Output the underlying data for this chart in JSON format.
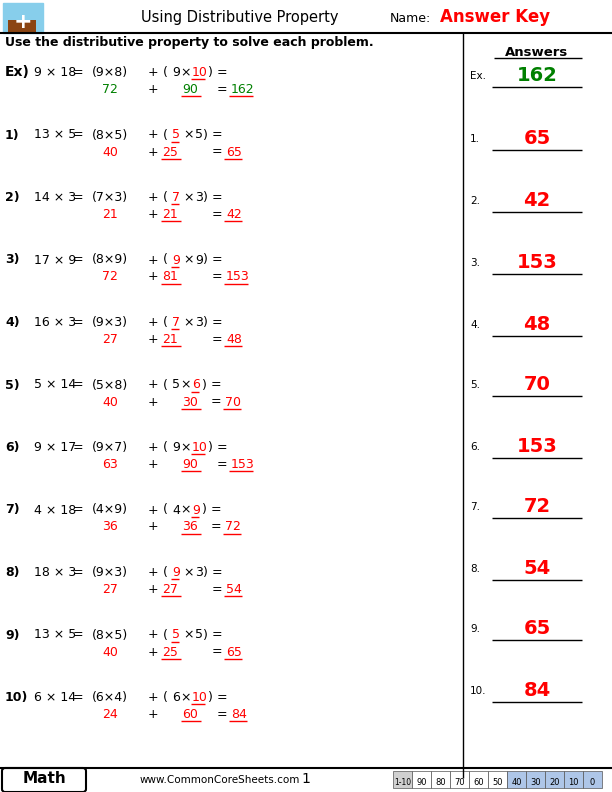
{
  "title": "Using Distributive Property",
  "name_label": "Name:",
  "answer_key_label": "Answer Key",
  "instruction": "Use the distributive property to solve each problem.",
  "answers_header": "Answers",
  "bg_color": "#ffffff",
  "rows": [
    {
      "label": "Ex)",
      "problem": "9 × 18",
      "eq_part1": "(9×8)",
      "under_val": "10",
      "left_mult": "9",
      "right_mult": "",
      "sub1": "72",
      "sub2": "90",
      "answer": "162",
      "ans_color": "green",
      "sub1_color": "green",
      "sub2_color": "green"
    },
    {
      "label": "1)",
      "problem": "13 × 5",
      "eq_part1": "(8×5)",
      "under_val": "5",
      "left_mult": "",
      "right_mult": "5",
      "sub1": "40",
      "sub2": "25",
      "answer": "65",
      "ans_color": "red",
      "sub1_color": "red",
      "sub2_color": "red"
    },
    {
      "label": "2)",
      "problem": "14 × 3",
      "eq_part1": "(7×3)",
      "under_val": "7",
      "left_mult": "",
      "right_mult": "3",
      "sub1": "21",
      "sub2": "21",
      "answer": "42",
      "ans_color": "red",
      "sub1_color": "red",
      "sub2_color": "red"
    },
    {
      "label": "3)",
      "problem": "17 × 9",
      "eq_part1": "(8×9)",
      "under_val": "9",
      "left_mult": "",
      "right_mult": "9",
      "sub1": "72",
      "sub2": "81",
      "answer": "153",
      "ans_color": "red",
      "sub1_color": "red",
      "sub2_color": "red"
    },
    {
      "label": "4)",
      "problem": "16 × 3",
      "eq_part1": "(9×3)",
      "under_val": "7",
      "left_mult": "",
      "right_mult": "3",
      "sub1": "27",
      "sub2": "21",
      "answer": "48",
      "ans_color": "red",
      "sub1_color": "red",
      "sub2_color": "red"
    },
    {
      "label": "5)",
      "problem": "5 × 14",
      "eq_part1": "(5×8)",
      "under_val": "6",
      "left_mult": "5",
      "right_mult": "",
      "sub1": "40",
      "sub2": "30",
      "answer": "70",
      "ans_color": "red",
      "sub1_color": "red",
      "sub2_color": "red"
    },
    {
      "label": "6)",
      "problem": "9 × 17",
      "eq_part1": "(9×7)",
      "under_val": "10",
      "left_mult": "9",
      "right_mult": "",
      "sub1": "63",
      "sub2": "90",
      "answer": "153",
      "ans_color": "red",
      "sub1_color": "red",
      "sub2_color": "red"
    },
    {
      "label": "7)",
      "problem": "4 × 18",
      "eq_part1": "(4×9)",
      "under_val": "9",
      "left_mult": "4",
      "right_mult": "",
      "sub1": "36",
      "sub2": "36",
      "answer": "72",
      "ans_color": "red",
      "sub1_color": "red",
      "sub2_color": "red"
    },
    {
      "label": "8)",
      "problem": "18 × 3",
      "eq_part1": "(9×3)",
      "under_val": "9",
      "left_mult": "",
      "right_mult": "3",
      "sub1": "27",
      "sub2": "27",
      "answer": "54",
      "ans_color": "red",
      "sub1_color": "red",
      "sub2_color": "red"
    },
    {
      "label": "9)",
      "problem": "13 × 5",
      "eq_part1": "(8×5)",
      "under_val": "5",
      "left_mult": "",
      "right_mult": "5",
      "sub1": "40",
      "sub2": "25",
      "answer": "65",
      "ans_color": "red",
      "sub1_color": "red",
      "sub2_color": "red"
    },
    {
      "label": "10)",
      "problem": "6 × 14",
      "eq_part1": "(6×4)",
      "under_val": "10",
      "left_mult": "6",
      "right_mult": "",
      "sub1": "24",
      "sub2": "60",
      "answer": "84",
      "ans_color": "red",
      "sub1_color": "red",
      "sub2_color": "red"
    }
  ],
  "right_answers": [
    "162",
    "65",
    "42",
    "153",
    "48",
    "70",
    "153",
    "72",
    "54",
    "65",
    "84"
  ],
  "right_labels": [
    "Ex.",
    "1.",
    "2.",
    "3.",
    "4.",
    "5.",
    "6.",
    "7.",
    "8.",
    "9.",
    "10."
  ],
  "right_colors": [
    "green",
    "red",
    "red",
    "red",
    "red",
    "red",
    "red",
    "red",
    "red",
    "red",
    "red"
  ],
  "score_labels": [
    "1-10",
    "90",
    "80",
    "70",
    "60",
    "50",
    "40",
    "30",
    "20",
    "10",
    "0"
  ],
  "score_bg": [
    "#d0d0d0",
    "#ffffff",
    "#ffffff",
    "#ffffff",
    "#ffffff",
    "#ffffff",
    "#aec6e8",
    "#aec6e8",
    "#aec6e8",
    "#aec6e8",
    "#aec6e8"
  ],
  "score_fg": [
    "#000000",
    "#000000",
    "#000000",
    "#000000",
    "#000000",
    "#000000",
    "#000000",
    "#000000",
    "#000000",
    "#000000",
    "#000000"
  ],
  "website": "www.CommonCoreSheets.com",
  "page_num": "1",
  "subject": "Math"
}
